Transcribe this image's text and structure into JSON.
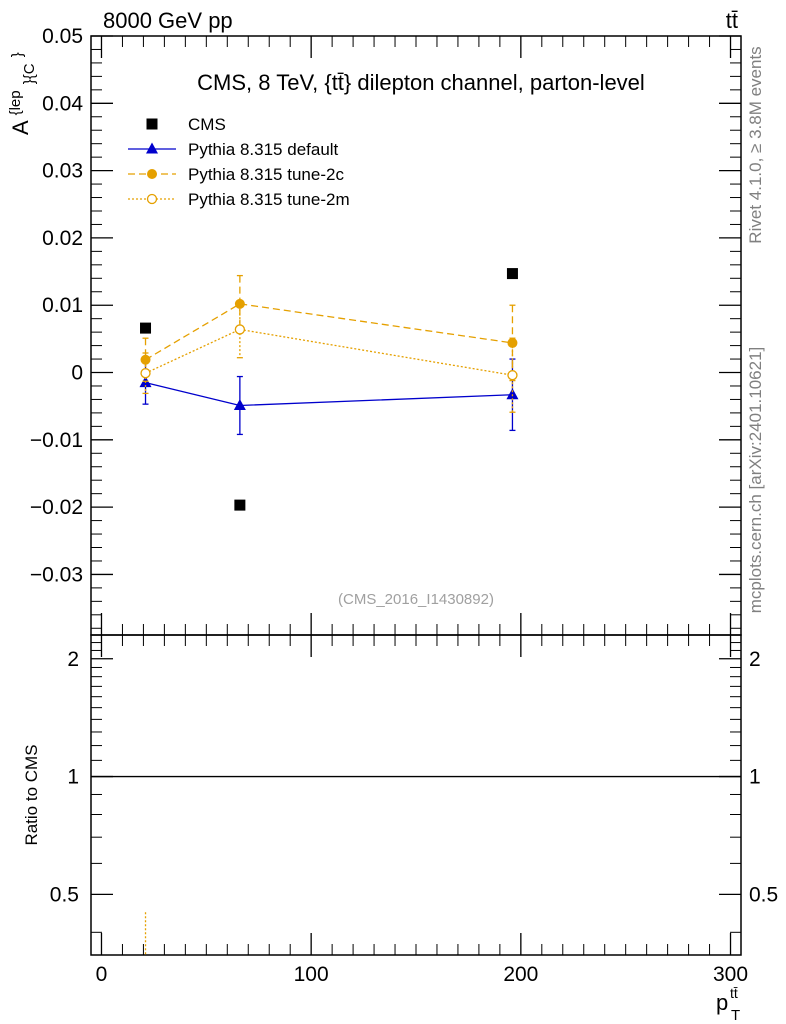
{
  "header": {
    "energy_label": "8000 GeV pp",
    "process_label": "tt̄",
    "rivet_label": "Rivet 4.1.0, ≥ 3.8M events",
    "site_label": "mcplots.cern.ch [arXiv:2401.10621]",
    "analysis_id": "(CMS_2016_I1430892)"
  },
  "chart_data": [
    {
      "type": "scatter",
      "title": "CMS, 8 TeV, {tt̄} dilepton channel, parton-level",
      "ylabel": "A^{lep}_{C}",
      "ylabel_main": "A",
      "ylabel_sup": "{lep",
      "ylabel_sub": "}{C",
      "ylabel_close": "}",
      "xlabel_main": "p",
      "xlabel_sup": "tt̄",
      "xlabel_sub": "T",
      "xlim": [
        -5,
        305
      ],
      "ylim": [
        -0.039,
        0.05
      ],
      "yticks": [
        -0.03,
        -0.02,
        -0.01,
        0,
        0.01,
        0.02,
        0.03,
        0.04,
        0.05
      ],
      "ytick_labels": [
        "−0.03",
        "−0.02",
        "−0.01",
        "0",
        "0.01",
        "0.02",
        "0.03",
        "0.04",
        "0.05"
      ],
      "legend_position": "top-left",
      "series": [
        {
          "name": "CMS",
          "color": "#000000",
          "marker": "square",
          "line": "none",
          "x": [
            21,
            66,
            196
          ],
          "y": [
            0.0066,
            -0.0197,
            0.0147
          ],
          "yerr": [
            0,
            0,
            0
          ]
        },
        {
          "name": "Pythia 8.315 default",
          "color": "#0000cc",
          "marker": "triangle",
          "line": "solid",
          "x": [
            21,
            66,
            196
          ],
          "y": [
            -0.0015,
            -0.0049,
            -0.0033
          ],
          "yerr": [
            0.0032,
            0.0043,
            0.0053
          ]
        },
        {
          "name": "Pythia 8.315 tune-2c",
          "color": "#e5a000",
          "marker": "circle",
          "line": "dashed",
          "x": [
            21,
            66,
            196
          ],
          "y": [
            0.0019,
            0.0102,
            0.0044
          ],
          "yerr": [
            0.0032,
            0.0042,
            0.0056
          ]
        },
        {
          "name": "Pythia 8.315 tune-2m",
          "color": "#e5a000",
          "marker": "open-circle",
          "line": "dotted",
          "x": [
            21,
            66,
            196
          ],
          "y": [
            -0.0001,
            0.0064,
            -0.0004
          ],
          "yerr": [
            0.003,
            0.0042,
            0.0055
          ]
        }
      ]
    },
    {
      "type": "line",
      "ylabel": "Ratio to CMS",
      "xlim": [
        -5,
        305
      ],
      "ylim": [
        0.35,
        2.3
      ],
      "yticks": [
        0.5,
        1,
        2
      ],
      "ytick_labels": [
        "0.5",
        "1",
        "2"
      ],
      "xticks": [
        0,
        100,
        200,
        300
      ],
      "xtick_labels": [
        "0",
        "100",
        "200",
        "300"
      ],
      "reference_line": 1,
      "series": [
        {
          "name": "Pythia 8.315 tune-2m ratio",
          "color": "#e5a000",
          "line": "dotted",
          "x": [
            21
          ],
          "y": [
            0.35
          ],
          "yerr_top": [
            0.45
          ]
        }
      ]
    }
  ]
}
